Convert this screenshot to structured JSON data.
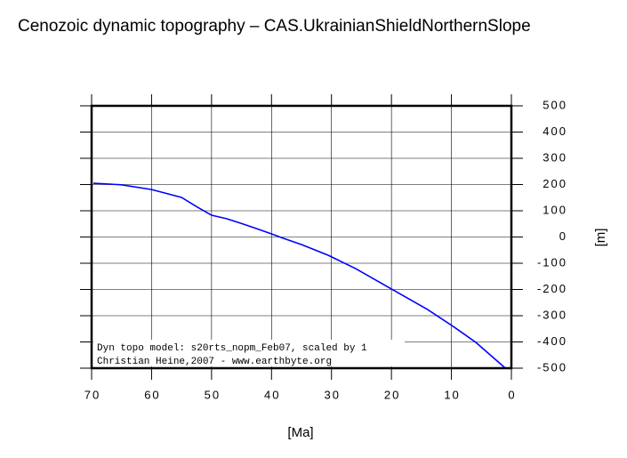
{
  "chart_data": {
    "type": "line",
    "title": "Cenozoic dynamic topography – CAS.UkrainianShieldNorthernSlope",
    "x_label": "[Ma]",
    "y_label": "[m]",
    "xlim": [
      70,
      0
    ],
    "ylim": [
      -500,
      500
    ],
    "xticks": [
      70,
      60,
      50,
      40,
      30,
      20,
      10,
      0
    ],
    "yticks": [
      500,
      400,
      300,
      200,
      100,
      0,
      -100,
      -200,
      -300,
      -400,
      -500
    ],
    "grid": true,
    "annotations": [
      "Dyn topo model: s20rts_nopm_Feb07, scaled by 1",
      "Christian Heine,2007 - www.earthbyte.org"
    ],
    "series": [
      {
        "color": "#0000ff",
        "x": [
          69.7,
          65,
          60,
          55,
          52.6,
          50,
          47.5,
          45.2,
          43,
          40,
          38,
          35,
          30.6,
          26,
          20,
          14,
          9.7,
          5.9,
          1
        ],
        "values": [
          205,
          199,
          181,
          151,
          117,
          83,
          70,
          53,
          36,
          12,
          -5,
          -29,
          -69,
          -120,
          -198,
          -276,
          -341,
          -402,
          -500
        ]
      }
    ]
  }
}
